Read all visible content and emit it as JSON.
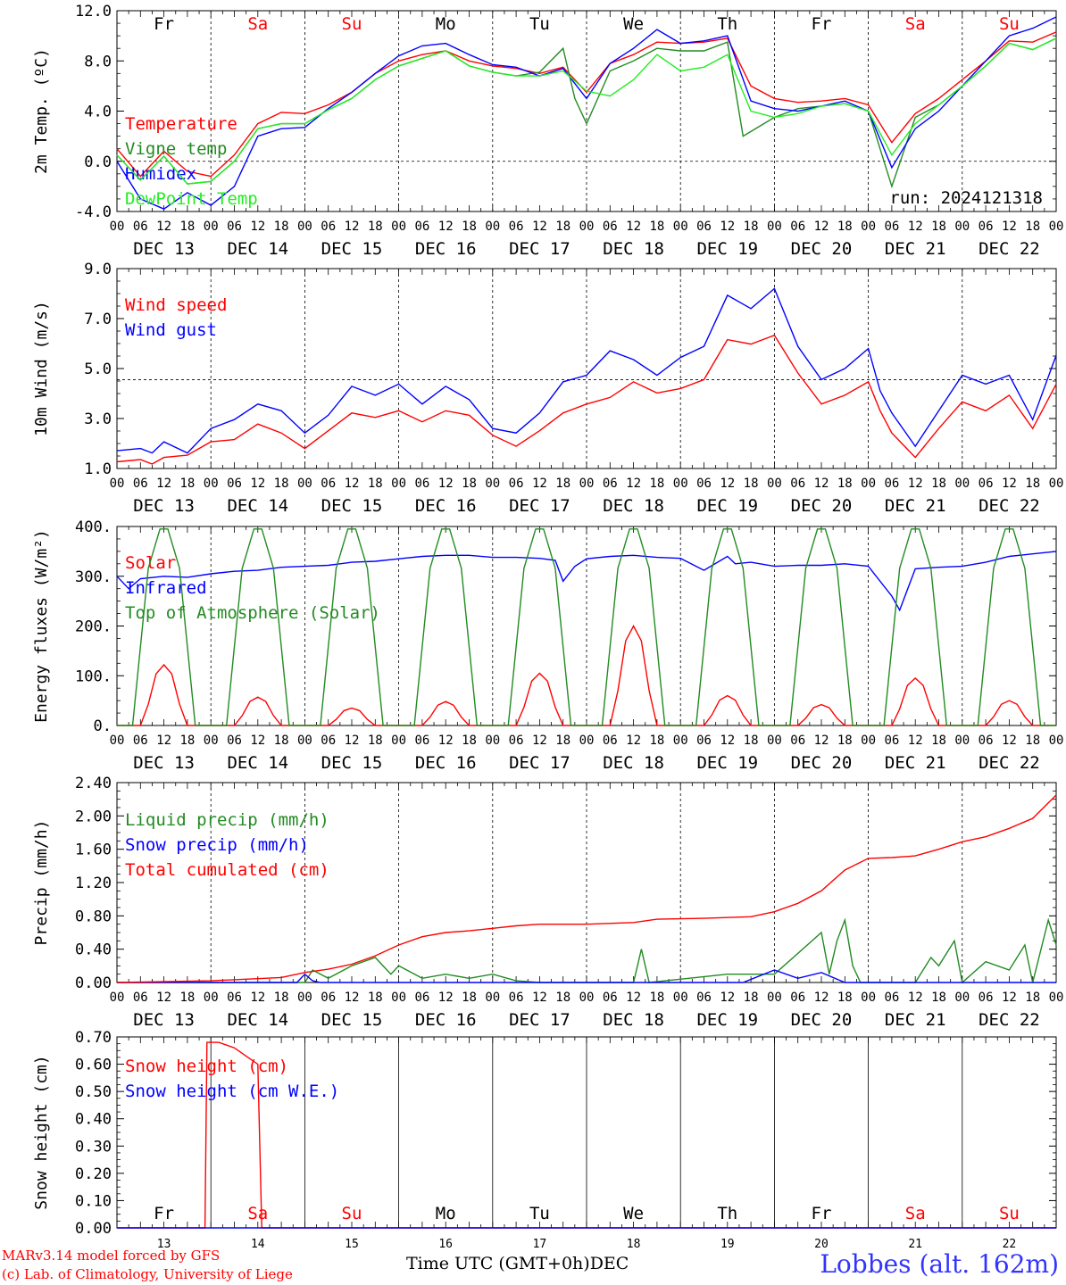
{
  "colors": {
    "red": "#ff0000",
    "green": "#228b22",
    "blue": "#0000ff",
    "lightgreen": "#22ee22",
    "weekend": "#ff0000",
    "weekday": "#000000"
  },
  "run_label": "run: 2024121318",
  "footer": {
    "credit_line1": "MARv3.14 model forced by GFS",
    "credit_line2": "(c) Lab. of Climatology, University of Liege",
    "x_title": "Time UTC (GMT+0h)",
    "month_label": "DEC",
    "station": "Lobbes (alt. 162m)"
  },
  "days": [
    {
      "name": "Fr",
      "date": "13",
      "weekend": false
    },
    {
      "name": "Sa",
      "date": "14",
      "weekend": true
    },
    {
      "name": "Su",
      "date": "15",
      "weekend": true
    },
    {
      "name": "Mo",
      "date": "16",
      "weekend": false
    },
    {
      "name": "Tu",
      "date": "17",
      "weekend": false
    },
    {
      "name": "We",
      "date": "18",
      "weekend": false
    },
    {
      "name": "Th",
      "date": "19",
      "weekend": false
    },
    {
      "name": "Fr",
      "date": "20",
      "weekend": false
    },
    {
      "name": "Sa",
      "date": "21",
      "weekend": true
    },
    {
      "name": "Su",
      "date": "22",
      "weekend": true
    }
  ],
  "date_labels": [
    "DEC 13",
    "DEC 14",
    "DEC 15",
    "DEC 16",
    "DEC 17",
    "DEC 18",
    "DEC 19",
    "DEC 20",
    "DEC 21",
    "DEC 22"
  ],
  "hour_labels": [
    "00",
    "06",
    "12",
    "18"
  ],
  "chart_data": [
    {
      "type": "line",
      "ylabel": "2m Temp. (ºC)",
      "yticks": [
        "12.0",
        "8.0",
        "4.0",
        "0.0",
        "-4.0"
      ],
      "ylim": [
        -4,
        12
      ],
      "xlim_hours": [
        0,
        240
      ],
      "dashed_ref": 0,
      "series": [
        {
          "name": "Temperature",
          "color": "#ff0000",
          "x": [
            0,
            6,
            12,
            18,
            24,
            30,
            36,
            42,
            48,
            54,
            60,
            66,
            72,
            78,
            84,
            90,
            96,
            102,
            108,
            114,
            120,
            126,
            132,
            138,
            144,
            150,
            156,
            162,
            168,
            174,
            180,
            186,
            192,
            198,
            204,
            210,
            216,
            222,
            228,
            234,
            240
          ],
          "y": [
            1.0,
            -1.2,
            0.8,
            -0.8,
            -1.2,
            0.5,
            3.0,
            3.9,
            3.8,
            4.5,
            5.5,
            7.0,
            8.0,
            8.5,
            8.8,
            8.0,
            7.6,
            7.4,
            7.0,
            7.5,
            5.5,
            7.8,
            8.5,
            9.5,
            9.4,
            9.5,
            9.8,
            6.0,
            5.0,
            4.7,
            4.8,
            5.0,
            4.5,
            1.5,
            3.8,
            5.0,
            6.5,
            8.0,
            9.6,
            9.5,
            10.3
          ]
        },
        {
          "name": "Vigne temp",
          "color": "#228b22",
          "x": [
            0,
            6,
            12,
            18,
            24,
            30,
            36,
            42,
            48,
            54,
            60,
            66,
            72,
            78,
            84,
            90,
            96,
            102,
            108,
            114,
            117,
            120,
            126,
            132,
            138,
            144,
            150,
            156,
            160,
            168,
            174,
            180,
            186,
            192,
            198,
            204,
            210,
            216,
            222,
            228,
            234,
            240
          ],
          "y": [
            0.5,
            -1.5,
            0.4,
            -1.8,
            -1.6,
            0.0,
            2.6,
            3.0,
            3.0,
            4.1,
            5.0,
            6.5,
            7.6,
            8.2,
            8.8,
            7.6,
            7.1,
            6.8,
            7.1,
            9.0,
            5.0,
            3.0,
            7.2,
            8.0,
            9.0,
            8.8,
            8.8,
            9.5,
            2.0,
            3.5,
            4.2,
            4.4,
            4.6,
            4.0,
            -2.0,
            3.5,
            4.5,
            6.0,
            7.6,
            9.4,
            8.9,
            9.8
          ]
        },
        {
          "name": "Humidex",
          "color": "#0000ff",
          "x": [
            0,
            6,
            12,
            18,
            24,
            30,
            36,
            42,
            48,
            54,
            60,
            66,
            72,
            78,
            84,
            90,
            96,
            102,
            108,
            114,
            120,
            126,
            132,
            138,
            144,
            150,
            156,
            162,
            168,
            174,
            180,
            186,
            192,
            198,
            204,
            210,
            216,
            222,
            228,
            234,
            240
          ],
          "y": [
            0.0,
            -3.0,
            -3.8,
            -2.5,
            -3.5,
            -2.0,
            2.0,
            2.6,
            2.7,
            4.2,
            5.5,
            7.0,
            8.4,
            9.2,
            9.4,
            8.5,
            7.7,
            7.5,
            6.8,
            7.4,
            5.0,
            7.8,
            9.0,
            10.5,
            9.4,
            9.6,
            10.0,
            4.8,
            4.2,
            4.0,
            4.4,
            4.8,
            4.0,
            -0.5,
            2.6,
            4.0,
            6.0,
            8.0,
            10.0,
            10.6,
            11.5
          ]
        },
        {
          "name": "DewPoint Temp",
          "color": "#22ee22",
          "x": [
            0,
            6,
            12,
            18,
            24,
            30,
            36,
            42,
            48,
            54,
            60,
            66,
            72,
            78,
            84,
            90,
            96,
            102,
            108,
            114,
            120,
            126,
            132,
            138,
            144,
            150,
            156,
            162,
            168,
            174,
            180,
            186,
            192,
            198,
            204,
            210,
            216,
            222,
            228,
            234,
            240
          ],
          "y": [
            0.5,
            -1.5,
            0.4,
            -1.8,
            -1.6,
            0.0,
            2.6,
            3.0,
            3.0,
            4.1,
            5.0,
            6.5,
            7.6,
            8.2,
            8.8,
            7.6,
            7.1,
            6.8,
            6.8,
            7.2,
            5.6,
            5.2,
            6.5,
            8.5,
            7.2,
            7.5,
            8.5,
            4.0,
            3.5,
            3.8,
            4.4,
            4.6,
            4.0,
            0.5,
            3.0,
            4.5,
            6.0,
            7.6,
            9.4,
            8.9,
            9.8
          ]
        }
      ]
    },
    {
      "type": "line",
      "ylabel": "10m Wind (m/s)",
      "yticks": [
        "9.0",
        "7.0",
        "5.0",
        "3.0",
        "1.0"
      ],
      "ylim": [
        1,
        10
      ],
      "xlim_hours": [
        0,
        240
      ],
      "dashed_ref": 5,
      "series": [
        {
          "name": "Wind speed",
          "color": "#ff0000",
          "x": [
            0,
            6,
            9,
            12,
            18,
            24,
            30,
            36,
            42,
            48,
            54,
            60,
            66,
            72,
            78,
            84,
            90,
            96,
            102,
            108,
            114,
            120,
            126,
            132,
            138,
            144,
            150,
            156,
            162,
            168,
            174,
            180,
            186,
            192,
            195,
            198,
            204,
            210,
            216,
            222,
            228,
            234,
            240
          ],
          "y": [
            1.3,
            1.4,
            1.2,
            1.5,
            1.6,
            2.2,
            2.3,
            3.0,
            2.6,
            1.9,
            2.7,
            3.5,
            3.3,
            3.6,
            3.1,
            3.6,
            3.4,
            2.5,
            2.0,
            2.7,
            3.5,
            3.9,
            4.2,
            4.9,
            4.4,
            4.6,
            5.0,
            6.8,
            6.6,
            7.0,
            5.3,
            3.9,
            4.3,
            4.9,
            3.6,
            2.6,
            1.5,
            2.8,
            4.0,
            3.6,
            4.3,
            2.8,
            4.8
          ]
        },
        {
          "name": "Wind gust",
          "color": "#0000ff",
          "x": [
            0,
            6,
            9,
            12,
            18,
            24,
            30,
            36,
            42,
            48,
            54,
            60,
            66,
            72,
            78,
            84,
            90,
            96,
            102,
            108,
            114,
            120,
            126,
            132,
            138,
            144,
            150,
            156,
            162,
            168,
            174,
            180,
            186,
            192,
            195,
            198,
            204,
            210,
            216,
            222,
            228,
            234,
            240
          ],
          "y": [
            1.8,
            1.9,
            1.7,
            2.2,
            1.7,
            2.8,
            3.2,
            3.9,
            3.6,
            2.6,
            3.4,
            4.7,
            4.3,
            4.8,
            3.9,
            4.7,
            4.1,
            2.8,
            2.6,
            3.5,
            4.9,
            5.2,
            6.3,
            5.9,
            5.2,
            6.0,
            6.5,
            8.8,
            8.2,
            9.1,
            6.5,
            5.0,
            5.5,
            6.4,
            4.5,
            3.5,
            2.0,
            3.6,
            5.2,
            4.8,
            5.2,
            3.2,
            6.1
          ]
        }
      ]
    },
    {
      "type": "line",
      "ylabel": "Energy fluxes (W/m²)",
      "yticks": [
        "400.",
        "300.",
        "200.",
        "100.",
        "0."
      ],
      "ylim": [
        0,
        400
      ],
      "xlim_hours": [
        0,
        240
      ],
      "series": [
        {
          "name": "Solar",
          "color": "#ff0000",
          "peaks": [
            122,
            57,
            35,
            48,
            105,
            200,
            60,
            42,
            95,
            50
          ]
        },
        {
          "name": "Infrared",
          "color": "#0000ff",
          "x": [
            0,
            3,
            6,
            12,
            18,
            24,
            30,
            36,
            42,
            48,
            54,
            60,
            66,
            72,
            78,
            84,
            90,
            96,
            102,
            108,
            112,
            114,
            117,
            120,
            126,
            132,
            138,
            144,
            150,
            156,
            158,
            162,
            168,
            174,
            180,
            186,
            192,
            198,
            200,
            204,
            210,
            216,
            222,
            228,
            234,
            240
          ],
          "y": [
            300,
            275,
            295,
            300,
            298,
            305,
            310,
            312,
            318,
            320,
            322,
            328,
            330,
            335,
            340,
            342,
            342,
            338,
            338,
            336,
            332,
            290,
            320,
            335,
            340,
            342,
            338,
            336,
            312,
            340,
            325,
            328,
            320,
            322,
            322,
            325,
            320,
            260,
            232,
            315,
            318,
            320,
            328,
            340,
            345,
            350
          ]
        },
        {
          "name": "Top of Atmosphere (Solar)",
          "color": "#228b22",
          "peak": 395
        }
      ]
    },
    {
      "type": "line",
      "ylabel": "Precip (mm/h)",
      "yticks": [
        "2.40",
        "2.00",
        "1.60",
        "1.20",
        "0.80",
        "0.40",
        "0.00"
      ],
      "ylim": [
        0,
        2.4
      ],
      "xlim_hours": [
        0,
        240
      ],
      "series": [
        {
          "name": "Liquid precip (mm/h)",
          "color": "#228b22",
          "x": [
            0,
            48,
            50,
            54,
            60,
            66,
            70,
            72,
            78,
            84,
            90,
            96,
            102,
            108,
            132,
            134,
            136,
            156,
            168,
            180,
            182,
            184,
            186,
            188,
            190,
            192,
            198,
            204,
            208,
            210,
            214,
            216,
            222,
            228,
            232,
            234,
            238,
            240
          ],
          "y": [
            0,
            0,
            0.15,
            0.05,
            0.2,
            0.3,
            0.1,
            0.2,
            0.05,
            0.1,
            0.05,
            0.1,
            0.02,
            0,
            0,
            0.4,
            0,
            0.1,
            0.1,
            0.6,
            0.1,
            0.5,
            0.75,
            0.2,
            0,
            0,
            0,
            0,
            0.3,
            0.2,
            0.5,
            0,
            0.25,
            0.15,
            0.45,
            0,
            0.75,
            0.45
          ]
        },
        {
          "name": "Snow precip (mm/h)",
          "color": "#0000ff",
          "x": [
            0,
            46,
            48,
            50,
            52,
            160,
            168,
            174,
            180,
            186,
            240
          ],
          "y": [
            0,
            0,
            0.1,
            0.02,
            0,
            0,
            0.15,
            0.05,
            0.12,
            0,
            0
          ]
        },
        {
          "name": "Total cumulated (cm)",
          "color": "#ff0000",
          "x": [
            0,
            24,
            42,
            48,
            54,
            60,
            66,
            72,
            78,
            84,
            90,
            96,
            102,
            108,
            120,
            132,
            138,
            150,
            162,
            168,
            174,
            180,
            186,
            192,
            198,
            204,
            210,
            216,
            222,
            228,
            234,
            240
          ],
          "y": [
            0,
            0.02,
            0.06,
            0.12,
            0.16,
            0.22,
            0.32,
            0.45,
            0.55,
            0.6,
            0.62,
            0.65,
            0.68,
            0.7,
            0.7,
            0.72,
            0.76,
            0.77,
            0.79,
            0.85,
            0.95,
            1.1,
            1.35,
            1.49,
            1.5,
            1.52,
            1.6,
            1.69,
            1.75,
            1.85,
            1.97,
            2.25
          ]
        }
      ]
    },
    {
      "type": "line",
      "ylabel": "Snow height (cm)",
      "yticks": [
        "0.70",
        "0.60",
        "0.50",
        "0.40",
        "0.30",
        "0.20",
        "0.10",
        "0.00"
      ],
      "ylim": [
        0,
        0.7
      ],
      "xlim_hours": [
        0,
        240
      ],
      "series": [
        {
          "name": "Snow height (cm)",
          "color": "#ff0000",
          "x": [
            0,
            22.5,
            23,
            26,
            30,
            33,
            36,
            37,
            240
          ],
          "y": [
            0,
            0,
            0.68,
            0.68,
            0.66,
            0.63,
            0.6,
            0,
            0
          ]
        },
        {
          "name": "Snow height (cm W.E.)",
          "color": "#0000ff",
          "x": [
            0,
            240
          ],
          "y": [
            0,
            0
          ]
        }
      ]
    }
  ]
}
